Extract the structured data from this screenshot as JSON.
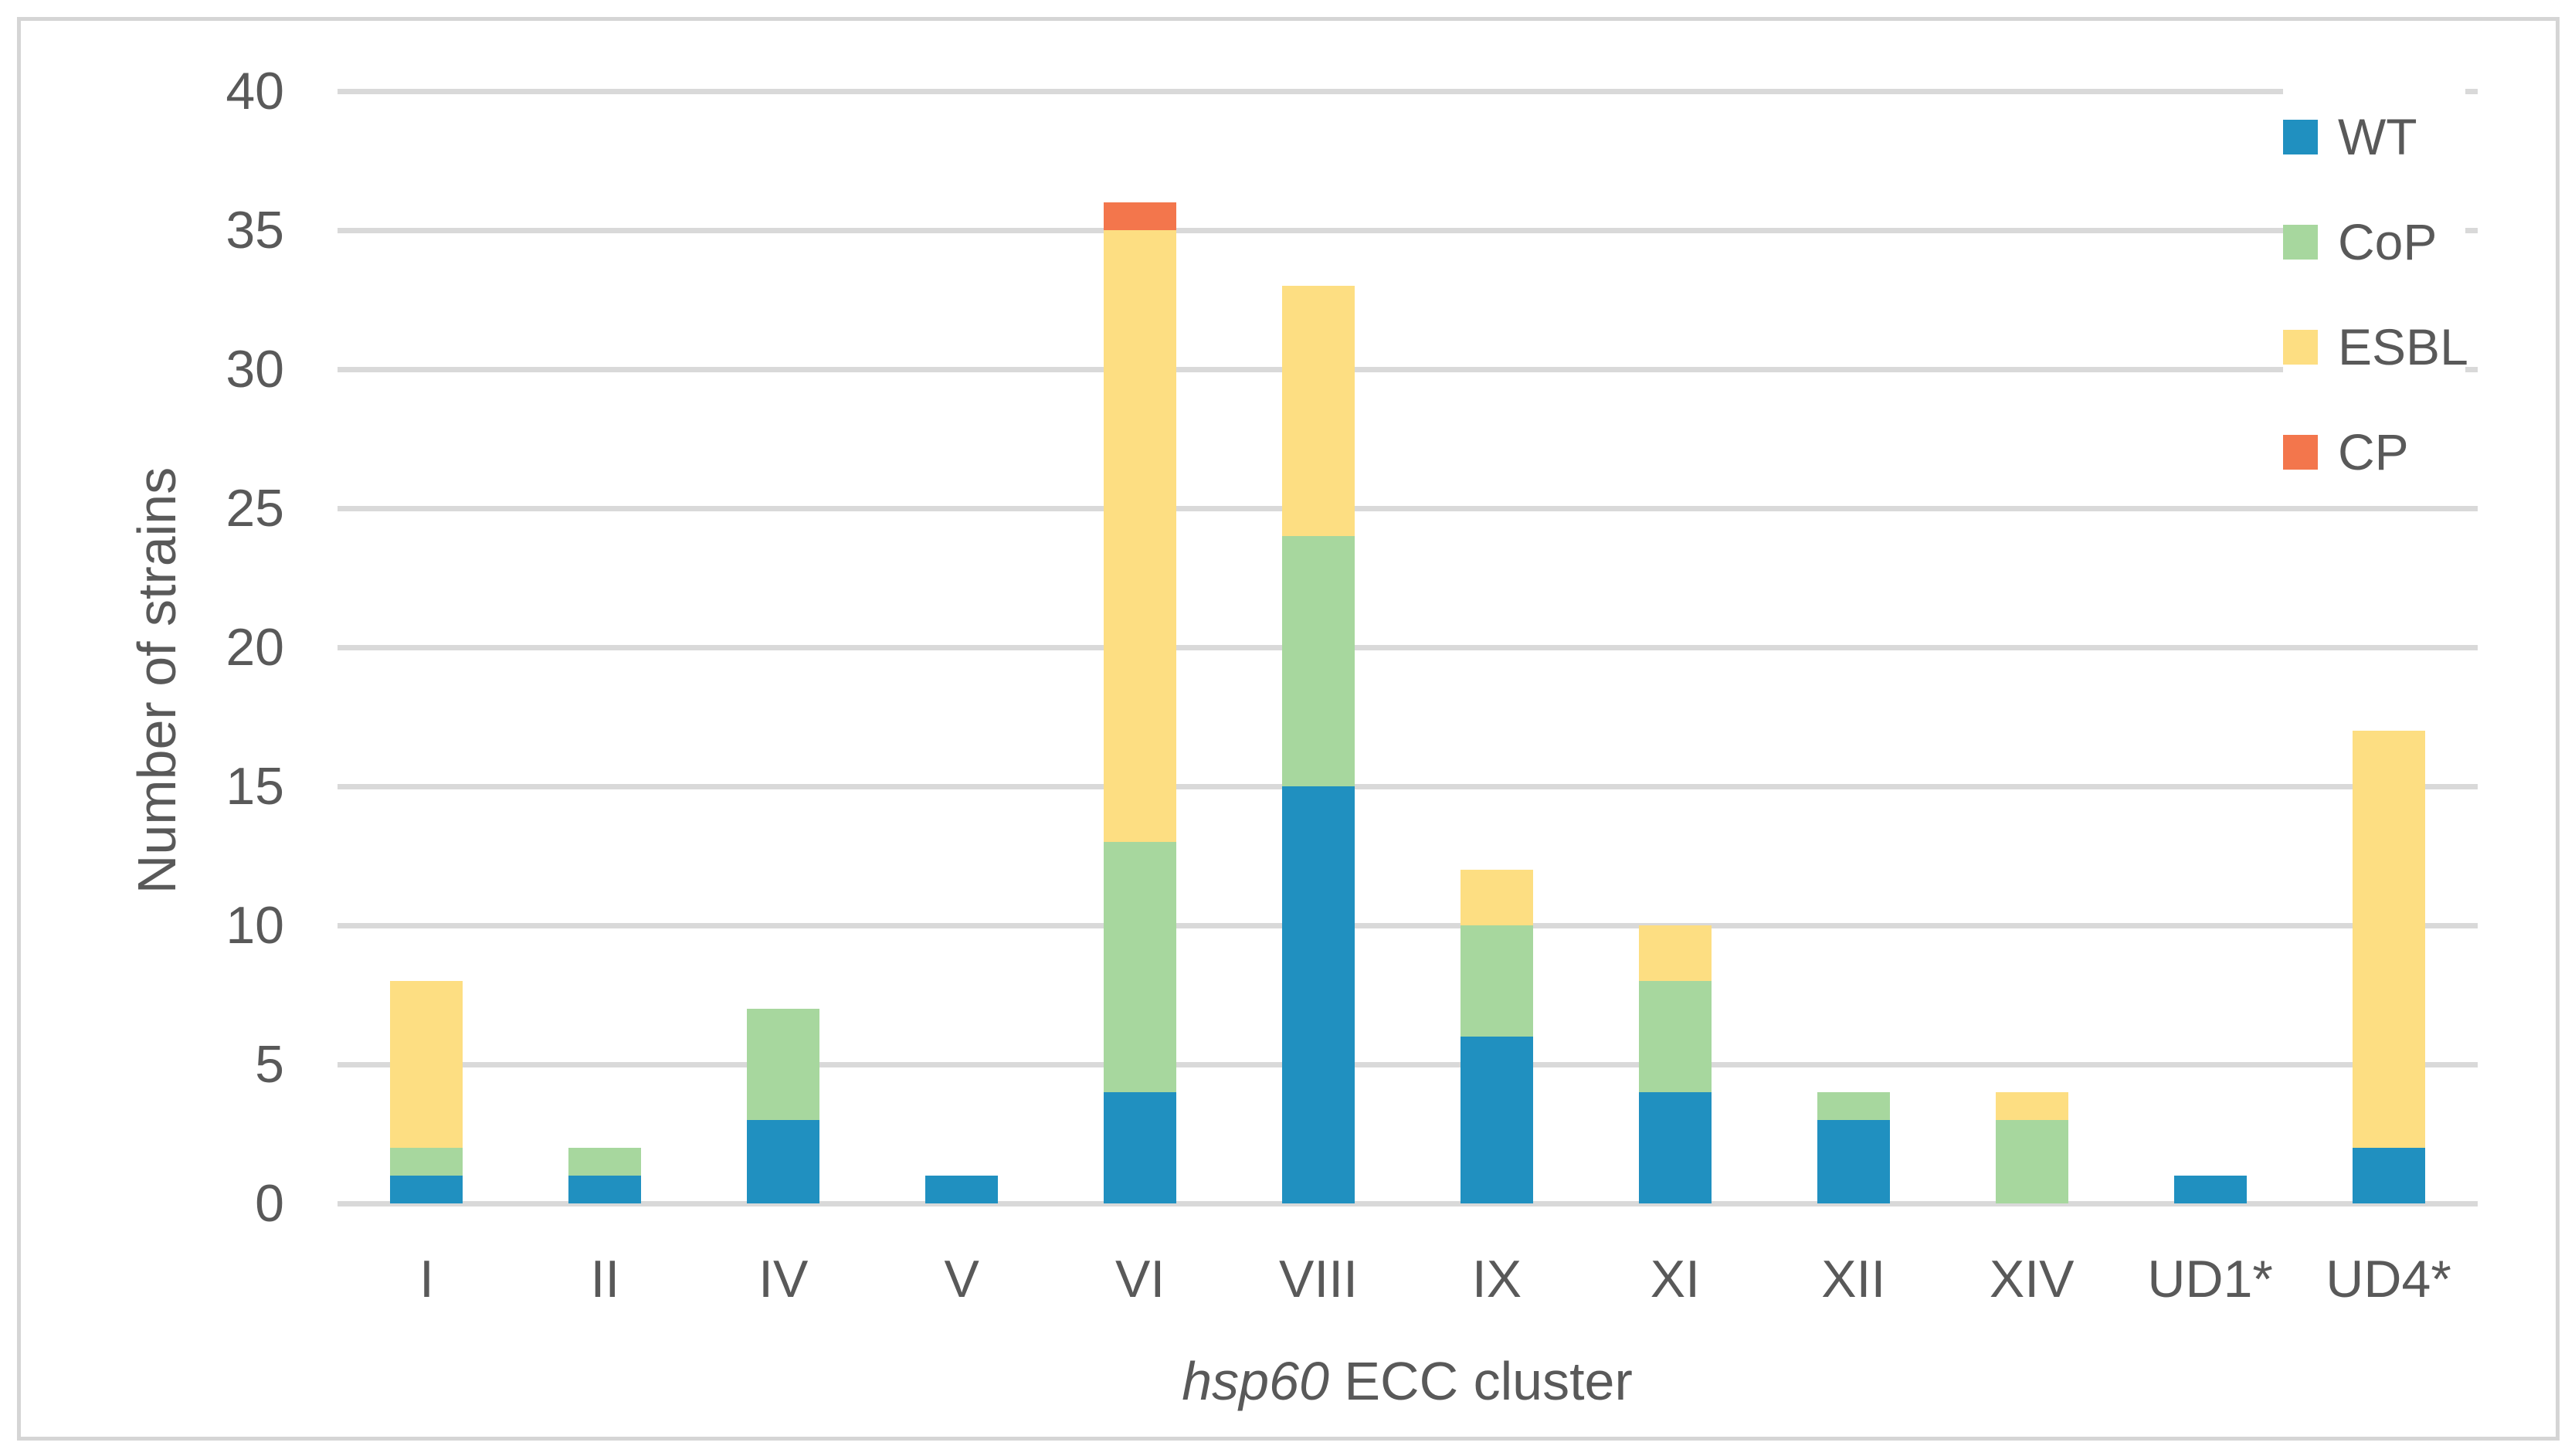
{
  "figure": {
    "background": "#FFFFFF",
    "border_color": "#D5D5D5"
  },
  "chart_data": {
    "type": "bar",
    "stacked": true,
    "title": "",
    "ylabel": "Number of strains",
    "xlabel": "hsp60 ECC cluster",
    "xlabel_parts": {
      "italic": "hsp60",
      "rest": " ECC cluster"
    },
    "categories": [
      "I",
      "II",
      "IV",
      "V",
      "VI",
      "VIII",
      "IX",
      "XI",
      "XII",
      "XIV",
      "UD1*",
      "UD4*"
    ],
    "series": [
      {
        "name": "WT",
        "color": "#2090C0",
        "values": [
          1,
          1,
          3,
          1,
          4,
          15,
          6,
          4,
          3,
          0,
          1,
          2
        ]
      },
      {
        "name": "CoP",
        "color": "#A7D79E",
        "values": [
          1,
          1,
          4,
          0,
          9,
          9,
          4,
          4,
          1,
          3,
          0,
          0
        ]
      },
      {
        "name": "ESBL",
        "color": "#FDDE82",
        "values": [
          6,
          0,
          0,
          0,
          22,
          9,
          2,
          2,
          0,
          1,
          0,
          15
        ]
      },
      {
        "name": "CP",
        "color": "#F3764C",
        "values": [
          0,
          0,
          0,
          0,
          1,
          0,
          0,
          0,
          0,
          0,
          0,
          0
        ]
      }
    ],
    "totals": [
      8,
      2,
      7,
      1,
      36,
      33,
      12,
      10,
      4,
      4,
      1,
      17
    ],
    "ylim": [
      0,
      40
    ],
    "ytick_step": 5,
    "yticks": [
      0,
      5,
      10,
      15,
      20,
      25,
      30,
      35,
      40
    ],
    "grid": "horizontal",
    "gridline_color": "#D9D9D9",
    "text_color": "#595959",
    "legend": {
      "position": "top-right",
      "items": [
        "WT",
        "CoP",
        "ESBL",
        "CP"
      ]
    }
  }
}
